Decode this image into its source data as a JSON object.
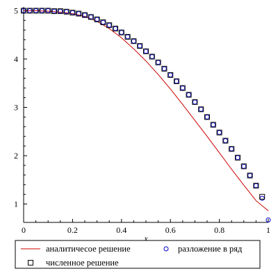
{
  "chart_data": {
    "type": "line",
    "title": "",
    "xlabel": "x",
    "ylabel": "",
    "xlim": [
      0,
      1
    ],
    "ylim": [
      0.62,
      5.02
    ],
    "grid": false,
    "legend_position": "bottom",
    "x_ticks": [
      "0",
      "0.2",
      "0.4",
      "0.6",
      "0.8",
      "1"
    ],
    "y_ticks": [
      "1",
      "2",
      "3",
      "4",
      "5"
    ],
    "series": [
      {
        "name": "аналитичесое решение",
        "kind": "line",
        "color": "#cc0000",
        "x": [
          0,
          0.05,
          0.1,
          0.15,
          0.2,
          0.25,
          0.3,
          0.35,
          0.4,
          0.45,
          0.5,
          0.55,
          0.6,
          0.65,
          0.7,
          0.75,
          0.8,
          0.85,
          0.9,
          0.95,
          1.0
        ],
        "y": [
          5.0,
          5.0,
          4.99,
          4.97,
          4.94,
          4.88,
          4.78,
          4.63,
          4.44,
          4.21,
          3.96,
          3.68,
          3.38,
          3.06,
          2.73,
          2.4,
          2.06,
          1.72,
          1.39,
          1.07,
          0.86
        ]
      },
      {
        "name": "разложение в ряд",
        "kind": "markers",
        "marker": "circle",
        "color": "#0000cc",
        "x": [
          0,
          0.025,
          0.05,
          0.075,
          0.1,
          0.125,
          0.15,
          0.175,
          0.2,
          0.225,
          0.25,
          0.275,
          0.3,
          0.325,
          0.35,
          0.375,
          0.4,
          0.425,
          0.45,
          0.475,
          0.5,
          0.525,
          0.55,
          0.575,
          0.6,
          0.625,
          0.65,
          0.675,
          0.7,
          0.725,
          0.75,
          0.775,
          0.8,
          0.825,
          0.85,
          0.875,
          0.9,
          0.925,
          0.95,
          0.975,
          1.0
        ],
        "y": [
          5.0,
          5.0,
          5.0,
          5.0,
          5.0,
          4.99,
          4.99,
          4.98,
          4.96,
          4.94,
          4.91,
          4.87,
          4.82,
          4.76,
          4.7,
          4.63,
          4.55,
          4.46,
          4.37,
          4.27,
          4.16,
          4.05,
          3.93,
          3.8,
          3.67,
          3.54,
          3.4,
          3.26,
          3.11,
          2.96,
          2.8,
          2.64,
          2.48,
          2.31,
          2.14,
          1.96,
          1.78,
          1.59,
          1.38,
          1.12,
          0.67
        ]
      },
      {
        "name": "численное решение",
        "kind": "markers",
        "marker": "square",
        "color": "#000000",
        "x": [
          0,
          0.025,
          0.05,
          0.075,
          0.1,
          0.125,
          0.15,
          0.175,
          0.2,
          0.225,
          0.25,
          0.275,
          0.3,
          0.325,
          0.35,
          0.375,
          0.4,
          0.425,
          0.45,
          0.475,
          0.5,
          0.525,
          0.55,
          0.575,
          0.6,
          0.625,
          0.65,
          0.675,
          0.7,
          0.725,
          0.75,
          0.775,
          0.8,
          0.825,
          0.85,
          0.875,
          0.9,
          0.925,
          0.95,
          0.975
        ],
        "y": [
          5.0,
          5.0,
          5.0,
          5.0,
          5.0,
          4.99,
          4.99,
          4.98,
          4.96,
          4.94,
          4.91,
          4.87,
          4.82,
          4.76,
          4.7,
          4.63,
          4.55,
          4.46,
          4.37,
          4.27,
          4.16,
          4.05,
          3.93,
          3.8,
          3.67,
          3.54,
          3.4,
          3.26,
          3.11,
          2.96,
          2.8,
          2.64,
          2.48,
          2.31,
          2.14,
          1.96,
          1.78,
          1.59,
          1.38,
          1.15
        ]
      }
    ]
  }
}
